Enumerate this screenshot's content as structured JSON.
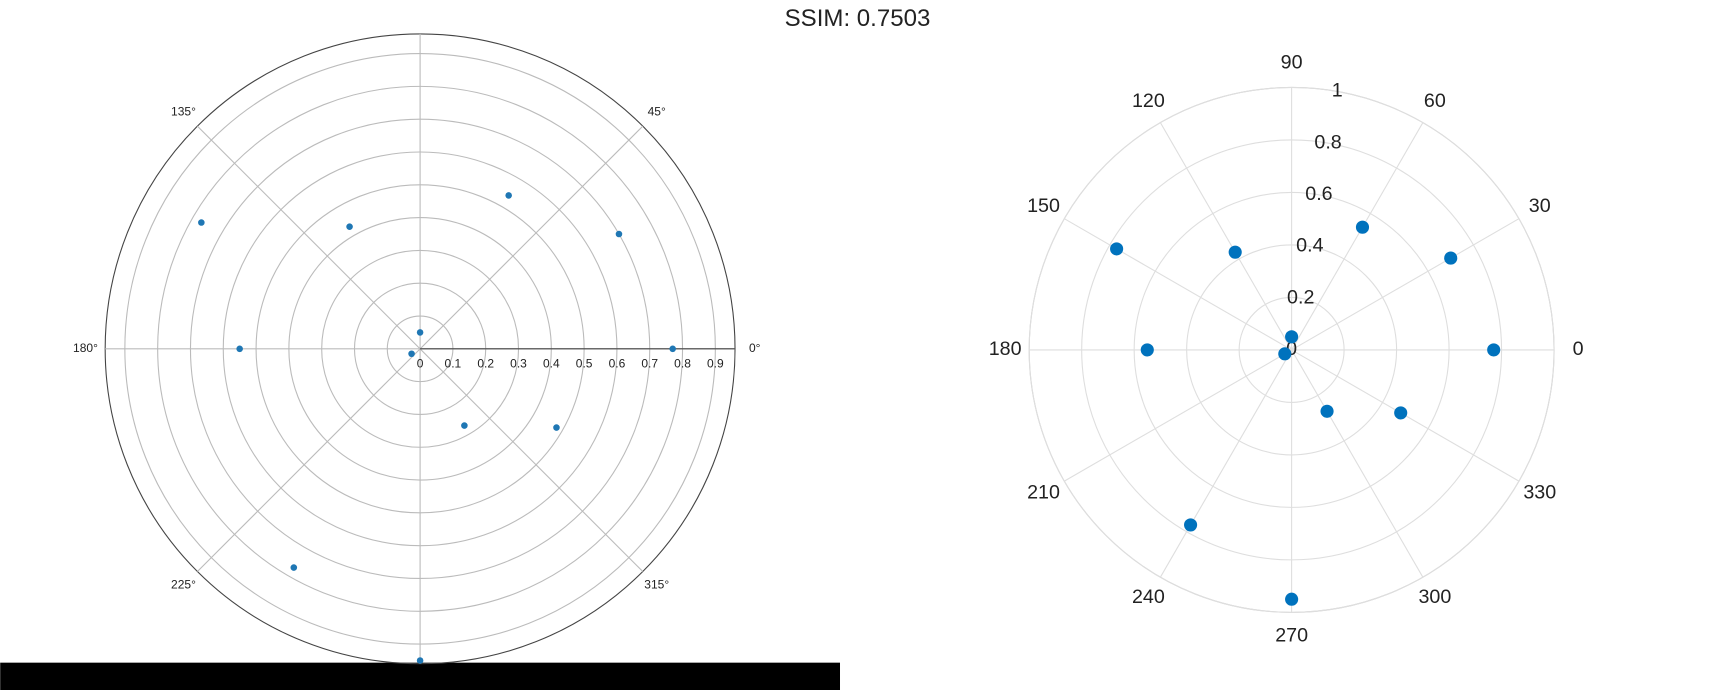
{
  "title": "SSIM: 0.7503",
  "chart_data": [
    {
      "type": "polar_scatter",
      "color": "#1f77b4",
      "theta": [
        0,
        30,
        60,
        90,
        120,
        150,
        180,
        210,
        240,
        270,
        300,
        330
      ],
      "r": [
        0.77,
        0.7,
        0.54,
        0.05,
        0.43,
        0.77,
        0.55,
        0.03,
        0.77,
        0.95,
        0.27,
        0.48
      ],
      "rlim": [
        0,
        0.96
      ],
      "rticks": [
        0,
        0.1,
        0.2,
        0.3,
        0.4,
        0.5,
        0.6,
        0.7,
        0.8,
        0.9
      ],
      "thetaticks": [
        {
          "value": 0,
          "label": "0°"
        },
        {
          "value": 45,
          "label": "45°"
        },
        {
          "value": 135,
          "label": "135°"
        },
        {
          "value": 180,
          "label": "180°"
        },
        {
          "value": 225,
          "label": "225°"
        },
        {
          "value": 315,
          "label": "315°"
        }
      ],
      "grid": true
    },
    {
      "type": "polar_scatter",
      "color": "#0072bd",
      "theta": [
        0,
        30,
        60,
        90,
        120,
        150,
        180,
        210,
        240,
        270,
        300,
        330
      ],
      "r": [
        0.77,
        0.7,
        0.54,
        0.05,
        0.43,
        0.77,
        0.55,
        0.03,
        0.77,
        0.95,
        0.27,
        0.48
      ],
      "rlim": [
        0,
        1
      ],
      "rticks": [
        0,
        0.2,
        0.4,
        0.6,
        0.8,
        1
      ],
      "thetaticks": [
        0,
        30,
        60,
        90,
        120,
        150,
        180,
        210,
        240,
        270,
        300,
        330
      ],
      "grid": true
    }
  ]
}
